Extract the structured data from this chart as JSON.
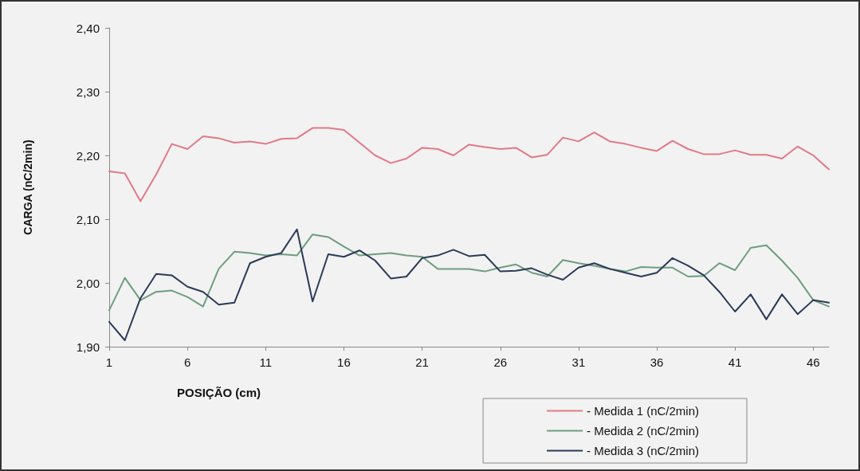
{
  "chart_data": {
    "type": "line",
    "xlabel": "POSIÇÃO (cm)",
    "ylabel": "CARGA (nC/2min)",
    "x": [
      1,
      2,
      3,
      4,
      5,
      6,
      7,
      8,
      9,
      10,
      11,
      12,
      13,
      14,
      15,
      16,
      17,
      18,
      19,
      20,
      21,
      22,
      23,
      24,
      25,
      26,
      27,
      28,
      29,
      30,
      31,
      32,
      33,
      34,
      35,
      36,
      37,
      38,
      39,
      40,
      41,
      42,
      43,
      44,
      45,
      46,
      47
    ],
    "xlim": [
      1,
      47
    ],
    "xticks": [
      1,
      6,
      11,
      16,
      21,
      26,
      31,
      36,
      41,
      46
    ],
    "ylim": [
      1.9,
      2.4
    ],
    "yticks": [
      {
        "value": 1.9,
        "label": "1,90"
      },
      {
        "value": 2.0,
        "label": "2,00"
      },
      {
        "value": 2.1,
        "label": "2,10"
      },
      {
        "value": 2.2,
        "label": "2,20"
      },
      {
        "value": 2.3,
        "label": "2,30"
      },
      {
        "value": 2.4,
        "label": "2,40"
      }
    ],
    "grid": false,
    "legend": "bottom right",
    "marker": "none",
    "line_style": "solid",
    "series": [
      {
        "name": "- Medida 1 (nC/2min)",
        "color": "#e07a88",
        "values": [
          2.175,
          2.172,
          2.128,
          2.17,
          2.218,
          2.21,
          2.23,
          2.227,
          2.22,
          2.222,
          2.218,
          2.226,
          2.227,
          2.243,
          2.243,
          2.24,
          2.22,
          2.2,
          2.188,
          2.195,
          2.212,
          2.21,
          2.2,
          2.217,
          2.213,
          2.21,
          2.212,
          2.197,
          2.201,
          2.228,
          2.222,
          2.236,
          2.222,
          2.218,
          2.212,
          2.207,
          2.223,
          2.21,
          2.202,
          2.202,
          2.208,
          2.201,
          2.201,
          2.195,
          2.214,
          2.2,
          2.178
        ]
      },
      {
        "name": "- Medida 2 (nC/2min)",
        "color": "#6f9c80",
        "values": [
          1.957,
          2.008,
          1.973,
          1.986,
          1.988,
          1.978,
          1.963,
          2.022,
          2.049,
          2.047,
          2.043,
          2.045,
          2.043,
          2.076,
          2.072,
          2.057,
          2.043,
          2.045,
          2.047,
          2.043,
          2.041,
          2.022,
          2.022,
          2.022,
          2.018,
          2.024,
          2.029,
          2.016,
          2.01,
          2.036,
          2.031,
          2.027,
          2.022,
          2.018,
          2.025,
          2.024,
          2.024,
          2.01,
          2.011,
          2.031,
          2.02,
          2.055,
          2.059,
          2.035,
          2.008,
          1.973,
          1.963
        ]
      },
      {
        "name": "- Medida 3 (nC/2min)",
        "color": "#2b3a58",
        "values": [
          1.939,
          1.91,
          1.976,
          2.014,
          2.012,
          1.994,
          1.986,
          1.966,
          1.969,
          2.031,
          2.041,
          2.047,
          2.084,
          1.971,
          2.045,
          2.041,
          2.051,
          2.035,
          2.007,
          2.01,
          2.039,
          2.043,
          2.052,
          2.042,
          2.044,
          2.018,
          2.019,
          2.023,
          2.013,
          2.005,
          2.024,
          2.031,
          2.022,
          2.016,
          2.01,
          2.016,
          2.039,
          2.027,
          2.012,
          1.986,
          1.955,
          1.982,
          1.943,
          1.982,
          1.951,
          1.973,
          1.969
        ]
      }
    ]
  }
}
